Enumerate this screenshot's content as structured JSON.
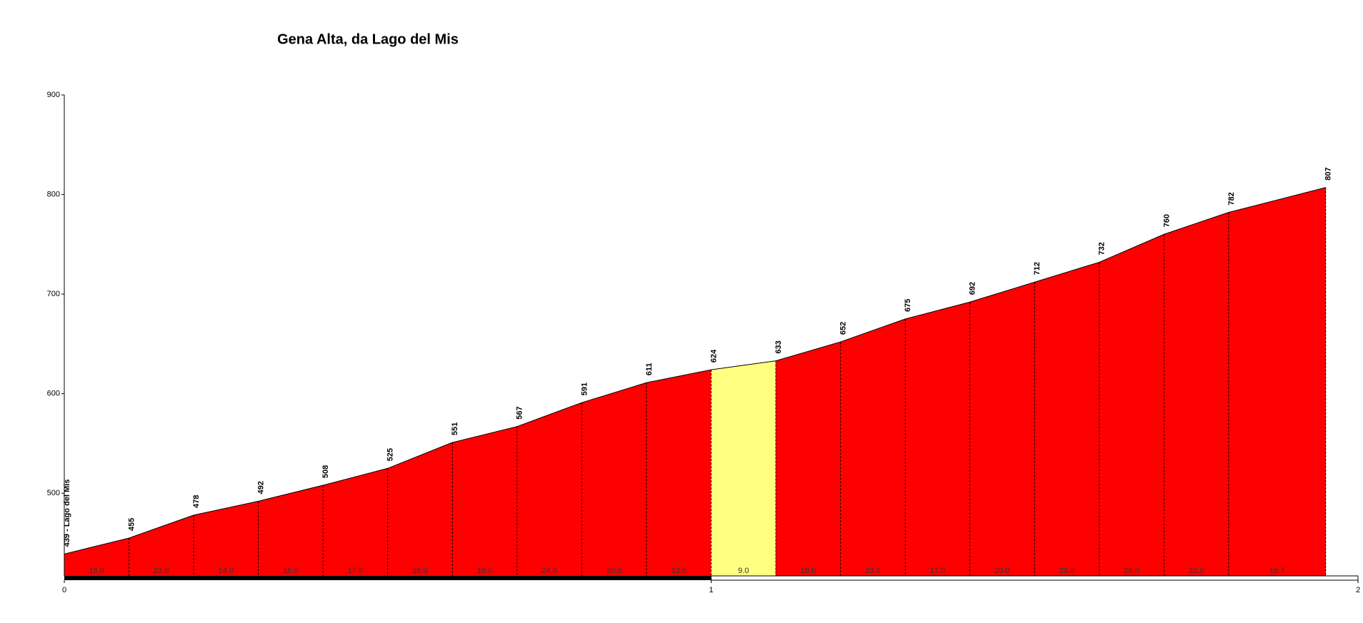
{
  "chart_data": {
    "type": "area",
    "title": "Gena Alta, da Lago del Mis",
    "x": [
      0,
      0.1,
      0.2,
      0.3,
      0.4,
      0.5,
      0.6,
      0.7,
      0.8,
      0.9,
      1.0,
      1.1,
      1.2,
      1.3,
      1.4,
      1.5,
      1.6,
      1.7,
      1.8,
      1.95
    ],
    "values": [
      439,
      455,
      478,
      492,
      508,
      525,
      551,
      567,
      591,
      611,
      624,
      633,
      652,
      675,
      692,
      712,
      732,
      760,
      782,
      807
    ],
    "value_labels": [
      "439 - Lago del Mis",
      "455",
      "478",
      "492",
      "508",
      "525",
      "551",
      "567",
      "591",
      "611",
      "624",
      "633",
      "652",
      "675",
      "692",
      "712",
      "732",
      "760",
      "782",
      "807"
    ],
    "gradients": [
      16,
      23,
      14,
      16,
      17,
      26,
      16,
      24,
      20,
      13,
      9,
      19,
      23,
      17,
      20,
      20,
      28,
      22,
      16.7
    ],
    "gradient_labels": [
      "16.0",
      "23.0",
      "14.0",
      "16.0",
      "17.0",
      "26.0",
      "16.0",
      "24.0",
      "20.0",
      "13.0",
      "9.0",
      "19.0",
      "23.0",
      "17.0",
      "20.0",
      "20.0",
      "28.0",
      "22.0",
      "16.7"
    ],
    "color": "#ff0000",
    "highlight_segments": [
      10
    ],
    "highlight_color": "#ffff80",
    "xlim": [
      0,
      2
    ],
    "xticks": [
      0,
      1,
      2
    ],
    "ylim": [
      417,
      900
    ],
    "yticks": [
      500,
      600,
      700,
      800,
      900
    ]
  }
}
